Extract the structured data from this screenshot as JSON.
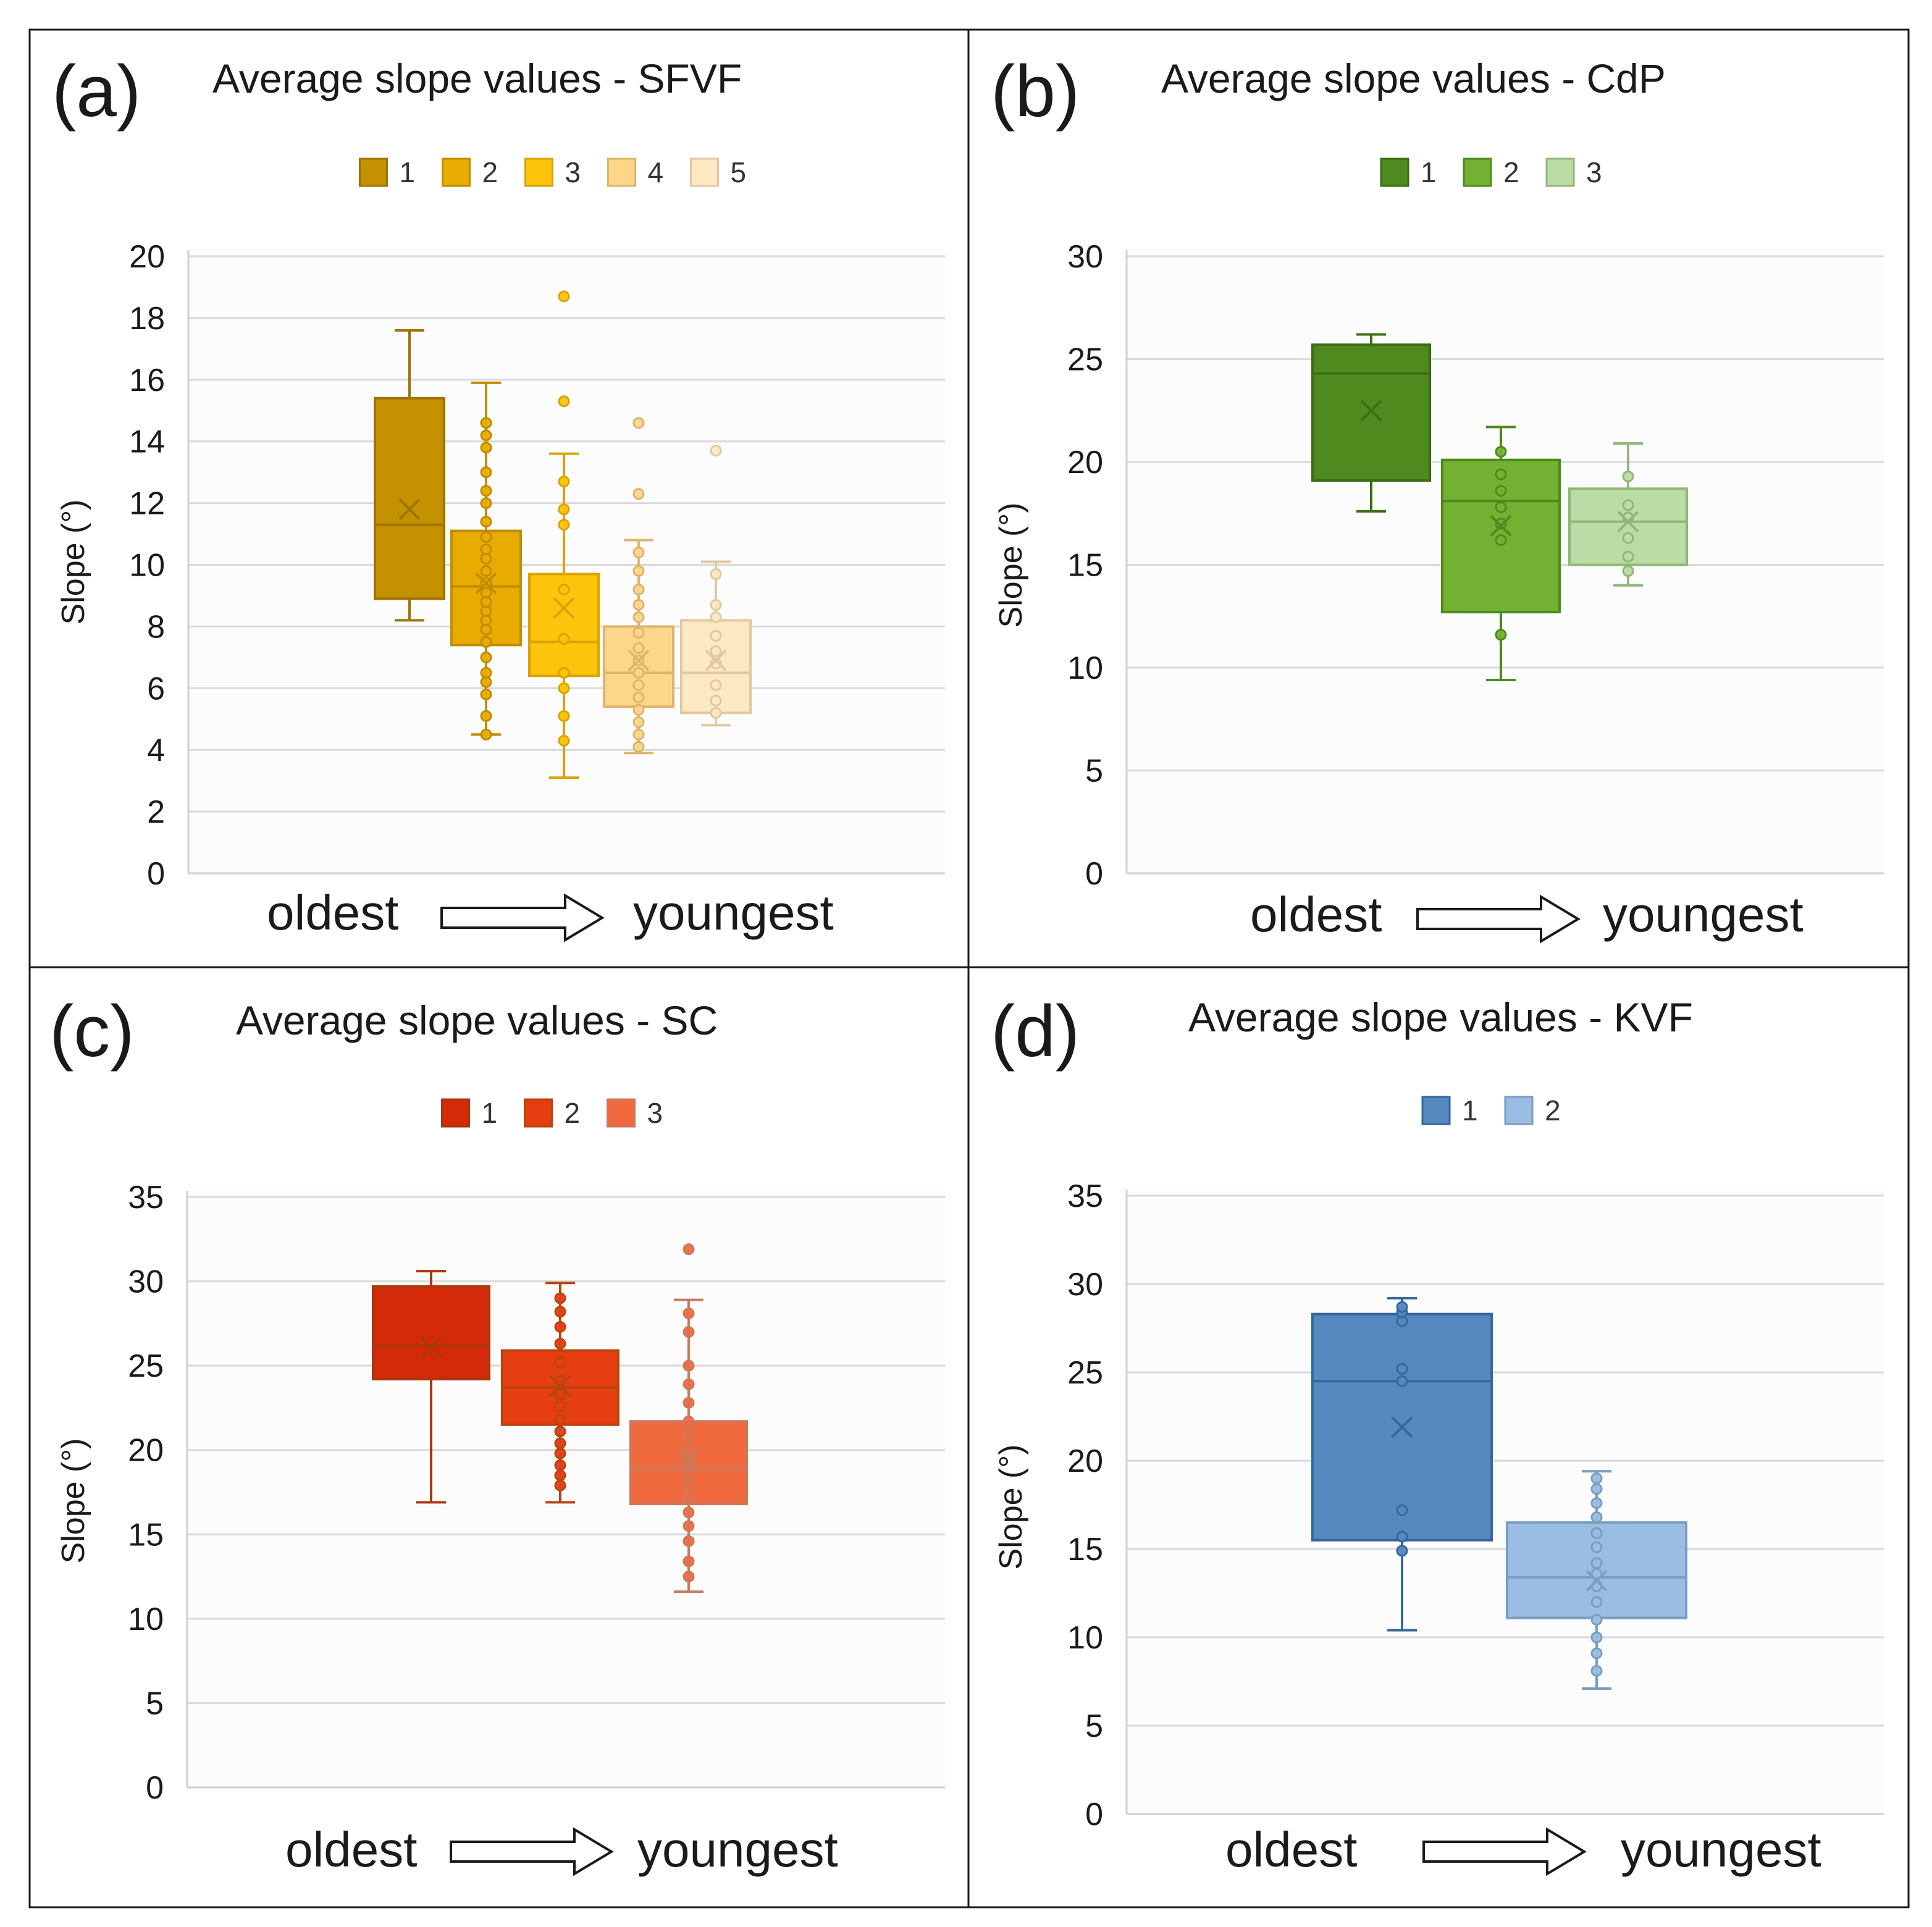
{
  "y_axis_label": "Slope (°)",
  "x_axis_start": "oldest",
  "x_axis_end": "youngest",
  "chart_data": [
    {
      "type": "box",
      "panel_letter": "(a)",
      "title": "Average slope values - SFVF",
      "ylabel": "Slope (°)",
      "ylim": [
        0,
        20
      ],
      "ytick_step": 2,
      "grid": true,
      "legend_position": "top-center",
      "colors": [
        "#c49100",
        "#e8ac00",
        "#fcc40a",
        "#fdd68a",
        "#fde8c4"
      ],
      "stroke": [
        "#9c7400",
        "#c08c00",
        "#d9a400",
        "#deb46e",
        "#e0c8a0"
      ],
      "series": [
        {
          "name": "1",
          "whisker_low": 8.2,
          "q1": 8.9,
          "median": 11.3,
          "q3": 15.4,
          "whisker_high": 17.6,
          "mean": 11.8,
          "points": []
        },
        {
          "name": "2",
          "whisker_low": 4.5,
          "q1": 7.4,
          "median": 9.3,
          "q3": 11.1,
          "whisker_high": 15.9,
          "mean": 9.4,
          "points": [
            4.5,
            5.1,
            5.8,
            6.2,
            6.5,
            7.0,
            7.5,
            7.9,
            8.2,
            8.5,
            8.8,
            9.1,
            9.4,
            9.8,
            10.2,
            10.5,
            10.9,
            11.4,
            12.0,
            12.4,
            13.0,
            13.8,
            14.2,
            14.6
          ]
        },
        {
          "name": "3",
          "whisker_low": 3.1,
          "q1": 6.4,
          "median": 7.5,
          "q3": 9.7,
          "whisker_high": 13.6,
          "mean": 8.6,
          "points": [
            4.3,
            5.1,
            6.0,
            6.5,
            7.6,
            9.2,
            11.3,
            11.8,
            12.7,
            15.3,
            18.7
          ]
        },
        {
          "name": "4",
          "whisker_low": 3.9,
          "q1": 5.4,
          "median": 6.5,
          "q3": 8.0,
          "whisker_high": 10.8,
          "mean": 6.9,
          "points": [
            4.1,
            4.5,
            4.9,
            5.3,
            5.7,
            6.1,
            6.5,
            6.9,
            7.3,
            7.8,
            8.3,
            8.7,
            9.2,
            9.8,
            10.4,
            12.3,
            14.6
          ]
        },
        {
          "name": "5",
          "whisker_low": 4.8,
          "q1": 5.2,
          "median": 6.5,
          "q3": 8.2,
          "whisker_high": 10.1,
          "mean": 6.9,
          "points": [
            5.2,
            5.6,
            6.1,
            6.8,
            7.2,
            7.7,
            8.3,
            8.7,
            9.7,
            13.7
          ]
        }
      ]
    },
    {
      "type": "box",
      "panel_letter": "(b)",
      "title": "Average slope values - CdP",
      "ylabel": "Slope (°)",
      "ylim": [
        0,
        30
      ],
      "ytick_step": 5,
      "grid": true,
      "legend_position": "top-center",
      "colors": [
        "#4e8a1e",
        "#73b132",
        "#bcdca6"
      ],
      "stroke": [
        "#3c6e14",
        "#4e8a1e",
        "#8fb878"
      ],
      "series": [
        {
          "name": "1",
          "whisker_low": 17.6,
          "q1": 19.1,
          "median": 24.3,
          "q3": 25.7,
          "whisker_high": 26.2,
          "mean": 22.5,
          "points": []
        },
        {
          "name": "2",
          "whisker_low": 9.4,
          "q1": 12.7,
          "median": 18.1,
          "q3": 20.1,
          "whisker_high": 21.7,
          "mean": 16.9,
          "points": [
            11.6,
            16.2,
            17.0,
            17.8,
            18.6,
            19.4,
            20.5
          ]
        },
        {
          "name": "3",
          "whisker_low": 14.0,
          "q1": 15.0,
          "median": 17.1,
          "q3": 18.7,
          "whisker_high": 20.9,
          "mean": 17.1,
          "points": [
            14.7,
            15.4,
            16.3,
            17.3,
            17.9,
            19.3
          ]
        }
      ]
    },
    {
      "type": "box",
      "panel_letter": "(c)",
      "title": "Average slope values - SC",
      "ylabel": "Slope (°)",
      "ylim": [
        0,
        35
      ],
      "ytick_step": 5,
      "grid": true,
      "legend_position": "top-center",
      "colors": [
        "#d42a0a",
        "#e53d10",
        "#f06a3e"
      ],
      "stroke": [
        "#a8380a",
        "#b84510",
        "#c97a5e"
      ],
      "series": [
        {
          "name": "1",
          "whisker_low": 16.9,
          "q1": 24.2,
          "median": 26.2,
          "q3": 29.7,
          "whisker_high": 30.6,
          "mean": 26.1,
          "points": []
        },
        {
          "name": "2",
          "whisker_low": 16.9,
          "q1": 21.5,
          "median": 23.7,
          "q3": 25.9,
          "whisker_high": 29.9,
          "mean": 23.8,
          "points": [
            17.9,
            18.5,
            19.1,
            19.8,
            20.4,
            21.1,
            21.8,
            22.6,
            23.3,
            24.1,
            25.2,
            26.3,
            27.3,
            28.2,
            29.0
          ]
        },
        {
          "name": "3",
          "whisker_low": 11.6,
          "q1": 16.8,
          "median": 18.9,
          "q3": 21.7,
          "whisker_high": 28.9,
          "mean": 19.5,
          "points": [
            12.5,
            13.4,
            14.6,
            15.5,
            16.3,
            17.1,
            17.8,
            18.5,
            19.3,
            20.0,
            20.8,
            21.7,
            22.8,
            23.9,
            25.0,
            27.0,
            28.1,
            31.9
          ]
        }
      ]
    },
    {
      "type": "box",
      "panel_letter": "(d)",
      "title": "Average slope values - KVF",
      "ylabel": "Slope (°)",
      "ylim": [
        0,
        35
      ],
      "ytick_step": 5,
      "grid": true,
      "legend_position": "top-center",
      "colors": [
        "#5589c0",
        "#9bbde3"
      ],
      "stroke": [
        "#35689c",
        "#7a9dc4"
      ],
      "series": [
        {
          "name": "1",
          "whisker_low": 10.4,
          "q1": 15.5,
          "median": 24.5,
          "q3": 28.3,
          "whisker_high": 29.2,
          "mean": 21.9,
          "points": [
            14.9,
            15.7,
            17.2,
            24.5,
            25.2,
            27.9,
            28.4,
            28.7
          ]
        },
        {
          "name": "2",
          "whisker_low": 7.1,
          "q1": 11.1,
          "median": 13.4,
          "q3": 16.5,
          "whisker_high": 19.4,
          "mean": 13.2,
          "points": [
            8.1,
            9.1,
            10.0,
            11.0,
            12.0,
            12.9,
            13.6,
            14.2,
            15.1,
            15.9,
            16.8,
            17.6,
            18.4,
            19.0
          ]
        }
      ]
    }
  ]
}
